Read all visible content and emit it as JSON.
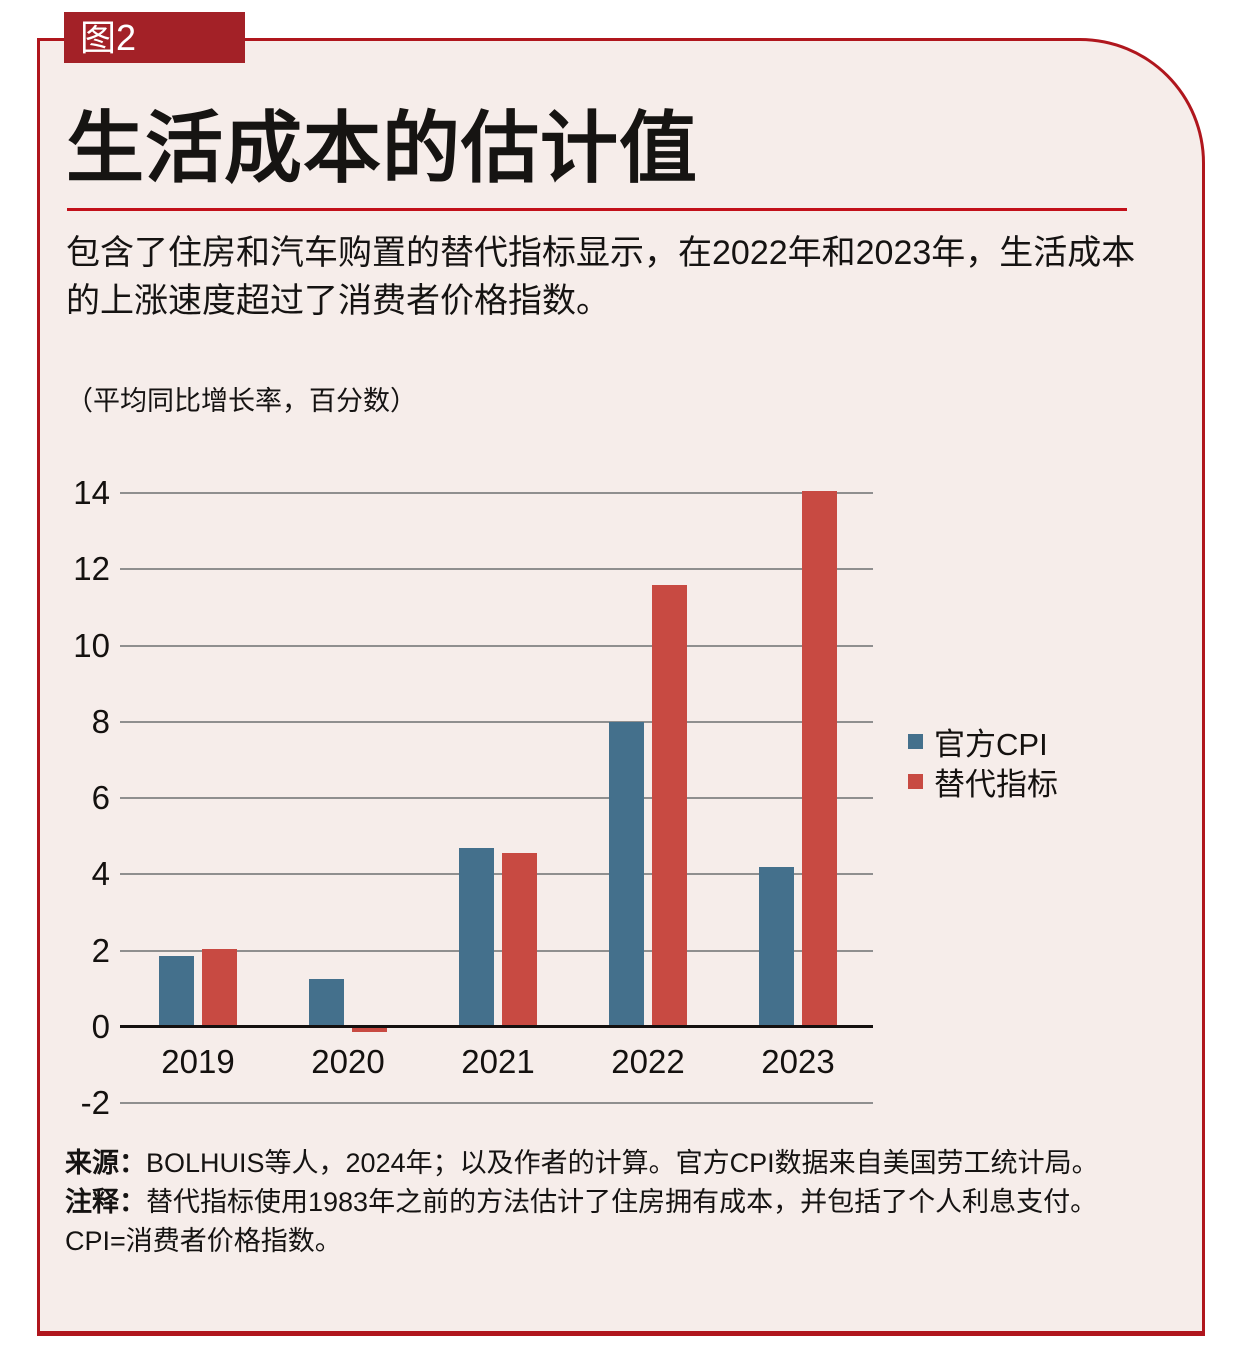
{
  "figure": {
    "badge": "图2",
    "title": "生活成本的估计值",
    "description": "包含了住房和汽车购置的替代指标显示，在2022年和2023年，生活成本的上涨速度超过了消费者价格指数。",
    "unit_label": "（平均同比增长率，百分数）"
  },
  "chart_data": {
    "type": "bar",
    "categories": [
      "2019",
      "2020",
      "2021",
      "2022",
      "2023"
    ],
    "series": [
      {
        "name": "官方CPI",
        "color": "#44708C",
        "values": [
          1.85,
          1.25,
          4.7,
          8.0,
          4.2
        ]
      },
      {
        "name": "替代指标",
        "color": "#C84A42",
        "values": [
          2.05,
          -0.15,
          4.55,
          11.6,
          14.05
        ]
      }
    ],
    "title": "生活成本的估计值",
    "xlabel": "",
    "ylabel": "（平均同比增长率，百分数）",
    "ylim": [
      -2,
      14
    ],
    "ytick_step": 2,
    "grid": true,
    "legend_position": "right"
  },
  "notes": {
    "source_label": "来源：",
    "source_text": "BOLHUIS等人，2024年；以及作者的计算。官方CPI数据来自美国劳工统计局。",
    "note_label": "注释：",
    "note_text": "替代指标使用1983年之前的方法估计了住房拥有成本，并包括了个人利息支付。",
    "abbrev": "CPI=消费者价格指数。"
  },
  "colors": {
    "panel_background": "#F6EDEA",
    "frame_red": "#B0161D",
    "badge_red": "#A32127",
    "divider_red": "#C2101A",
    "bar_blue": "#44708C",
    "bar_red": "#C84A42",
    "gridline_gray": "#8F8F8F",
    "axis_black": "#14100F"
  }
}
